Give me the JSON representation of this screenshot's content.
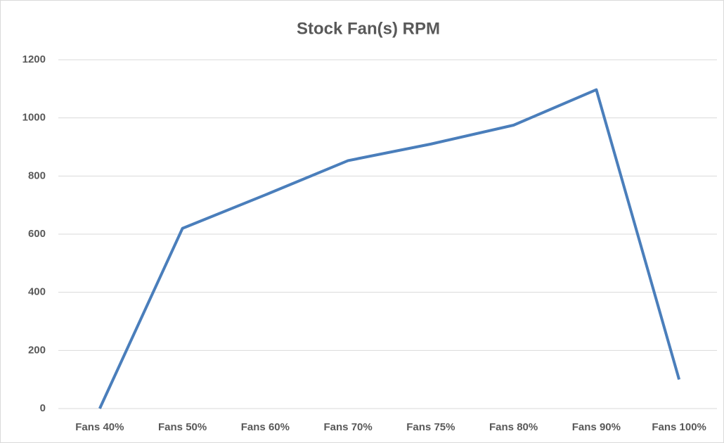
{
  "chart_data": {
    "type": "line",
    "title": "Stock Fan(s) RPM",
    "categories": [
      "Fans 40%",
      "Fans 50%",
      "Fans 60%",
      "Fans 70%",
      "Fans 75%",
      "Fans 80%",
      "Fans 90%",
      "Fans 100%"
    ],
    "series": [
      {
        "name": "RPM",
        "color": "#4a7ebb",
        "values": [
          0,
          620,
          735,
          853,
          910,
          975,
          1097,
          100
        ]
      }
    ],
    "ylim": [
      0,
      1200
    ],
    "yticks": [
      0,
      200,
      400,
      600,
      800,
      1000,
      1200
    ],
    "grid": true
  }
}
